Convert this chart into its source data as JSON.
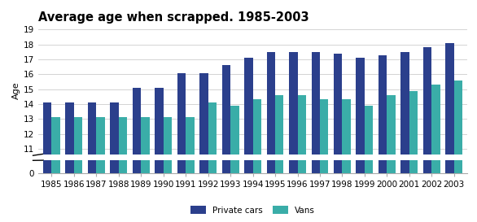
{
  "title": "Average age when scrapped. 1985-2003",
  "ylabel": "Age",
  "years": [
    1985,
    1986,
    1987,
    1988,
    1989,
    1990,
    1991,
    1992,
    1993,
    1994,
    1995,
    1996,
    1997,
    1998,
    1999,
    2000,
    2001,
    2002,
    2003
  ],
  "private_cars": [
    14.1,
    14.1,
    14.1,
    14.1,
    15.1,
    15.1,
    16.1,
    16.1,
    16.6,
    17.1,
    17.5,
    17.5,
    17.5,
    17.4,
    17.1,
    17.3,
    17.5,
    17.8,
    18.1
  ],
  "vans": [
    13.1,
    13.1,
    13.1,
    13.1,
    13.1,
    13.1,
    13.1,
    14.1,
    13.9,
    14.3,
    14.6,
    14.6,
    14.3,
    14.3,
    13.9,
    14.6,
    14.9,
    15.3,
    15.6
  ],
  "private_cars_color": "#2B3F8C",
  "vans_color": "#3AADA8",
  "ylim_min": 0,
  "ylim_max": 19,
  "yticks": [
    0,
    11,
    12,
    13,
    14,
    15,
    16,
    17,
    18,
    19
  ],
  "background_color": "#ffffff",
  "legend_labels": [
    "Private cars",
    "Vans"
  ],
  "bar_width": 0.38,
  "title_fontsize": 10.5,
  "axis_fontsize": 8,
  "tick_fontsize": 7.5
}
